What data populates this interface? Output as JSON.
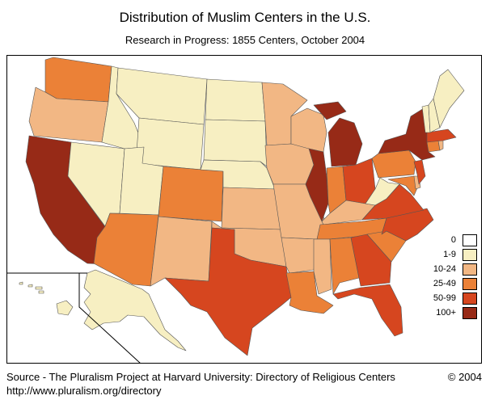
{
  "title": "Distribution of Muslim Centers in the U.S.",
  "subtitle": "Research in Progress: 1855 Centers, October 2004",
  "source": "Source - The Pluralism Project at Harvard University: Directory of Religious Centers",
  "copyright": "© 2004",
  "url": "http://www.pluralism.org/directory",
  "legend": [
    {
      "label": "0",
      "color": "#ffffff"
    },
    {
      "label": "1-9",
      "color": "#f7efc2"
    },
    {
      "label": "10-24",
      "color": "#f2b784"
    },
    {
      "label": "25-49",
      "color": "#eb8137"
    },
    {
      "label": "50-99",
      "color": "#d6461f"
    },
    {
      "label": "100+",
      "color": "#972a17"
    }
  ],
  "state_categories": {
    "WA": 3,
    "OR": 2,
    "CA": 5,
    "NV": 1,
    "ID": 1,
    "MT": 1,
    "WY": 1,
    "UT": 1,
    "AZ": 3,
    "CO": 3,
    "NM": 2,
    "ND": 1,
    "SD": 1,
    "NE": 1,
    "KS": 2,
    "OK": 2,
    "TX": 4,
    "MN": 2,
    "IA": 2,
    "MO": 2,
    "AR": 2,
    "LA": 3,
    "WI": 2,
    "IL": 5,
    "MI": 5,
    "IN": 3,
    "OH": 4,
    "KY": 2,
    "TN": 3,
    "MS": 2,
    "AL": 3,
    "GA": 4,
    "FL": 4,
    "SC": 3,
    "NC": 4,
    "VA": 4,
    "WV": 1,
    "PA": 3,
    "NY": 5,
    "NJ": 4,
    "MD": 3,
    "DE": 2,
    "CT": 3,
    "MA": 4,
    "RI": 2,
    "VT": 1,
    "NH": 1,
    "ME": 1,
    "AK": 1,
    "HI": 1
  }
}
